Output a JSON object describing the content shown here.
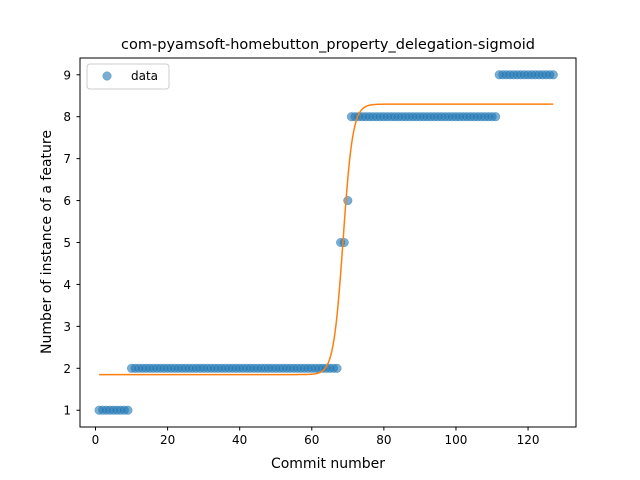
{
  "chart_data": {
    "type": "scatter",
    "title": "com-pyamsoft-homebutton_property_delegation-sigmoid",
    "xlabel": "Commit number",
    "ylabel": "Number of instance of a feature",
    "xlim": [
      -4.3,
      133.3
    ],
    "ylim": [
      0.6,
      9.4
    ],
    "xticks": [
      0,
      20,
      40,
      60,
      80,
      100,
      120
    ],
    "yticks": [
      1,
      2,
      3,
      4,
      5,
      6,
      7,
      8,
      9
    ],
    "grid": false,
    "legend": {
      "position": "top-left",
      "entries": [
        "data"
      ]
    },
    "colors": {
      "points": "#1f77b4",
      "fit": "#ff7f0e"
    },
    "series": [
      {
        "name": "data",
        "kind": "scatter",
        "segments": [
          {
            "x_from": 1,
            "x_to": 9,
            "y": 1
          },
          {
            "x_from": 10,
            "x_to": 67,
            "y": 2
          },
          {
            "x_from": 68,
            "x_to": 69,
            "y": 5
          },
          {
            "x_from": 70,
            "x_to": 70,
            "y": 6
          },
          {
            "x_from": 71,
            "x_to": 111,
            "y": 8
          },
          {
            "x_from": 112,
            "x_to": 127,
            "y": 9
          }
        ]
      },
      {
        "kind": "line",
        "model": "sigmoid",
        "params": {
          "lower": 1.85,
          "upper": 8.3,
          "midpoint": 68.7,
          "slope": 0.75
        },
        "x_range": [
          1,
          127
        ]
      }
    ]
  }
}
